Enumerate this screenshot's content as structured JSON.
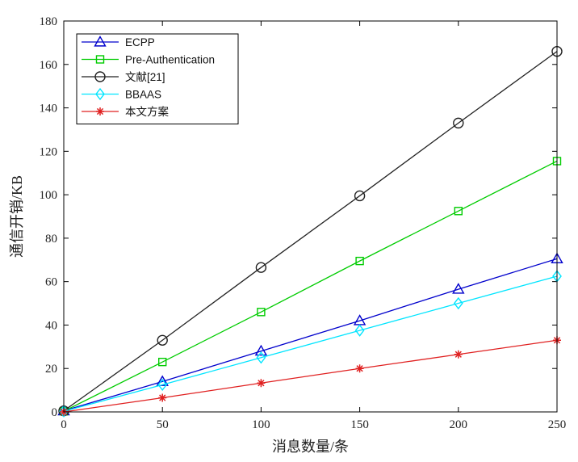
{
  "chart_data": {
    "type": "line",
    "title": "",
    "xlabel": "消息数量/条",
    "ylabel": "通信开销/KB",
    "xlim": [
      0,
      250
    ],
    "ylim": [
      0,
      180
    ],
    "xticks": [
      0,
      50,
      100,
      150,
      200,
      250
    ],
    "yticks": [
      0,
      20,
      40,
      60,
      80,
      100,
      120,
      140,
      160,
      180
    ],
    "grid": false,
    "legend_position": "top-left",
    "x": [
      0,
      50,
      100,
      150,
      200,
      250
    ],
    "series": [
      {
        "name": "ECPP",
        "values": [
          0.5,
          14,
          28,
          42,
          56.5,
          70.5
        ],
        "color": "#0000cc",
        "marker": "triangle"
      },
      {
        "name": "Pre-Authentication",
        "values": [
          0.3,
          23,
          46,
          69.5,
          92.5,
          115.5
        ],
        "color": "#00cc00",
        "marker": "square"
      },
      {
        "name": "文献[21]",
        "values": [
          0.5,
          33,
          66.5,
          99.5,
          133,
          166
        ],
        "color": "#222222",
        "marker": "circle"
      },
      {
        "name": "BBAAS",
        "values": [
          0.3,
          12.5,
          25,
          37.5,
          50,
          62.5
        ],
        "color": "#00e5ff",
        "marker": "diamond"
      },
      {
        "name": "本文方案",
        "values": [
          0,
          6.5,
          13.3,
          20,
          26.5,
          33
        ],
        "color": "#e02020",
        "marker": "star"
      }
    ]
  }
}
